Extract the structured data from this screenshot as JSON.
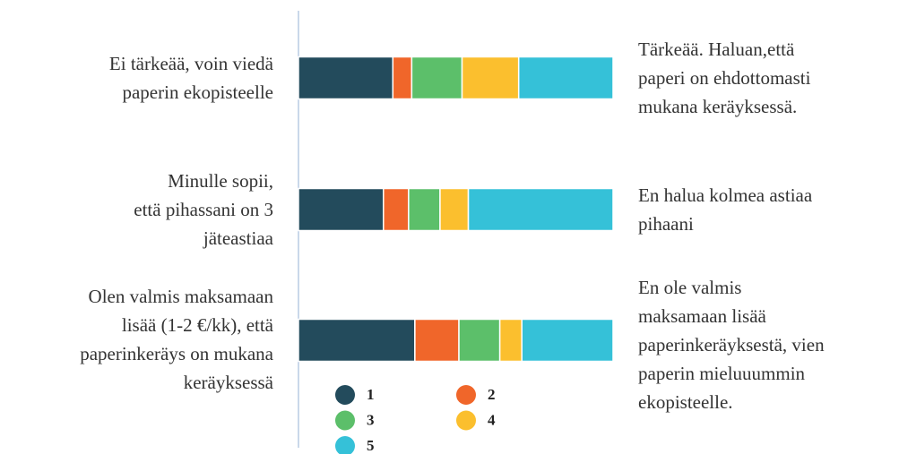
{
  "chart_data": {
    "type": "stacked_bar_horizontal",
    "categories": [
      [
        "Ei tärkeää, voin viedä",
        "paperin ekopisteelle"
      ],
      [
        "Minulle sopii,",
        "että pihassani on 3",
        "jäteastiaa"
      ],
      [
        "Olen valmis maksamaan",
        "lisää (1-2 €/kk), että",
        "paperinkeräys on mukana",
        "keräyksessä"
      ]
    ],
    "right_labels": [
      [
        "Tärkeää. Haluan,että",
        "paperi on ehdottomasti",
        "mukana keräyksessä."
      ],
      [
        "En halua kolmea astiaa",
        "pihaani"
      ],
      [
        "En ole valmis",
        "maksamaan lisää",
        "paperinkeräyksestä, vien",
        "paperin mieluuummin",
        "ekopisteelle."
      ]
    ],
    "series": [
      {
        "name": "1",
        "color": "#234b5c",
        "values": [
          30,
          27,
          37
        ]
      },
      {
        "name": "2",
        "color": "#f0662a",
        "values": [
          6,
          8,
          14
        ]
      },
      {
        "name": "3",
        "color": "#5cbf6a",
        "values": [
          16,
          10,
          13
        ]
      },
      {
        "name": "4",
        "color": "#fbbf2e",
        "values": [
          18,
          9,
          7
        ]
      },
      {
        "name": "5",
        "color": "#35c1d8",
        "values": [
          30,
          46,
          29
        ]
      }
    ],
    "xlim": [
      0,
      100
    ]
  }
}
